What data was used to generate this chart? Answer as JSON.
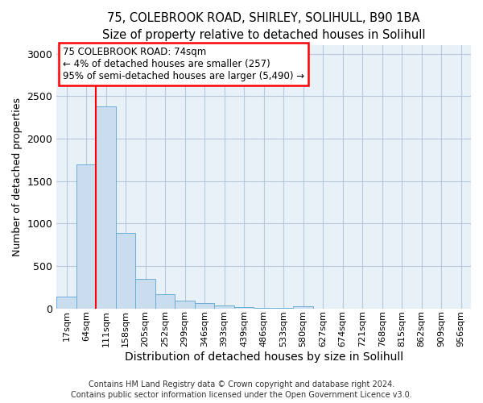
{
  "title1": "75, COLEBROOK ROAD, SHIRLEY, SOLIHULL, B90 1BA",
  "title2": "Size of property relative to detached houses in Solihull",
  "xlabel": "Distribution of detached houses by size in Solihull",
  "ylabel": "Number of detached properties",
  "annotation_line1": "75 COLEBROOK ROAD: 74sqm",
  "annotation_line2": "← 4% of detached houses are smaller (257)",
  "annotation_line3": "95% of semi-detached houses are larger (5,490) →",
  "bar_labels": [
    "17sqm",
    "64sqm",
    "111sqm",
    "158sqm",
    "205sqm",
    "252sqm",
    "299sqm",
    "346sqm",
    "393sqm",
    "439sqm",
    "486sqm",
    "533sqm",
    "580sqm",
    "627sqm",
    "674sqm",
    "721sqm",
    "768sqm",
    "815sqm",
    "862sqm",
    "909sqm",
    "956sqm"
  ],
  "bar_values": [
    140,
    1700,
    2380,
    890,
    350,
    165,
    95,
    60,
    35,
    15,
    8,
    5,
    25,
    0,
    0,
    0,
    0,
    0,
    0,
    0,
    0
  ],
  "bar_color": "#c9ddef",
  "bar_edge_color": "#6aaed6",
  "red_line_x": 1.5,
  "ylim": [
    0,
    3100
  ],
  "yticks": [
    0,
    500,
    1000,
    1500,
    2000,
    2500,
    3000
  ],
  "footer1": "Contains HM Land Registry data © Crown copyright and database right 2024.",
  "footer2": "Contains public sector information licensed under the Open Government Licence v3.0.",
  "bg_color": "#ffffff",
  "plot_bg_color": "#e8f0f8",
  "grid_color": "#b8c8dc"
}
